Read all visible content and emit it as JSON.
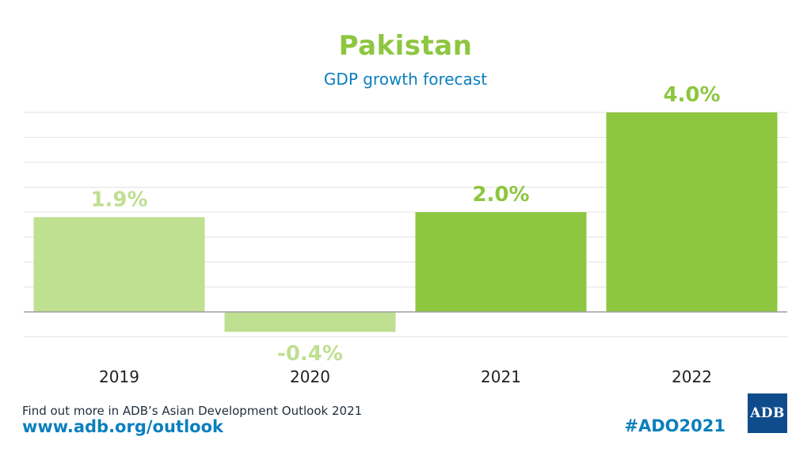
{
  "colors": {
    "title": "#8dc63f",
    "subtitle": "#0b7fbd",
    "actual_bar": "#bfdf91",
    "forecast_bar": "#8dc63f",
    "grid": "#e3e3e3",
    "axis": "#9e9e9e",
    "footer_link": "#0b7fbd",
    "logo_bg": "#0f4c8c"
  },
  "chart_data": {
    "type": "bar",
    "title": "Pakistan",
    "subtitle": "GDP growth forecast",
    "categories": [
      "2019",
      "2020",
      "2021",
      "2022"
    ],
    "values": [
      1.9,
      -0.4,
      2.0,
      4.0
    ],
    "data_labels": [
      "1.9%",
      "-0.4%",
      "2.0%",
      "4.0%"
    ],
    "series_kind": [
      "actual",
      "actual",
      "forecast",
      "forecast"
    ],
    "ylim": [
      -0.5,
      4.0
    ],
    "grid": true,
    "legend": "none"
  },
  "footer": {
    "note": "Find out more in ADB’s Asian Development Outlook 2021",
    "url": "www.adb.org/outlook",
    "hashtag": "#ADO2021"
  },
  "logo": {
    "text": "ADB"
  }
}
